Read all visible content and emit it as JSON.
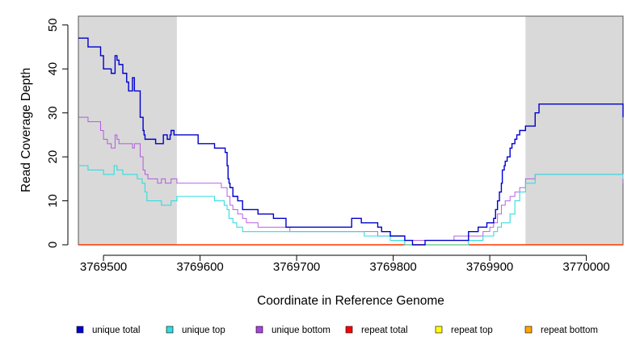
{
  "chart_data": {
    "type": "line",
    "title": "",
    "xlabel": "Coordinate in Reference Genome",
    "ylabel": "Read Coverage Depth",
    "xlim": [
      3769474,
      3770038
    ],
    "ylim": [
      0,
      52
    ],
    "x_ticks": [
      {
        "value": 3769500,
        "label": "3769500"
      },
      {
        "value": 3769600,
        "label": "3769600"
      },
      {
        "value": 3769700,
        "label": "3769700"
      },
      {
        "value": 3769800,
        "label": "3769800"
      },
      {
        "value": 3769900,
        "label": "3769900"
      },
      {
        "value": 3770000,
        "label": "3770000"
      }
    ],
    "y_ticks": [
      {
        "value": 0,
        "label": "0"
      },
      {
        "value": 10,
        "label": "10"
      },
      {
        "value": 20,
        "label": "20"
      },
      {
        "value": 30,
        "label": "30"
      },
      {
        "value": 40,
        "label": "40"
      },
      {
        "value": 50,
        "label": "50"
      }
    ],
    "shaded_regions": [
      {
        "x0": 3769474,
        "x1": 3769576
      },
      {
        "x0": 3769937,
        "x1": 3770038
      }
    ],
    "legend_position": "bottom",
    "series": [
      {
        "name": "unique total",
        "color": "#0000cc",
        "width": 1.4,
        "opacity": 1,
        "step": true,
        "x": [
          3769474,
          3769480,
          3769484,
          3769493,
          3769497,
          3769500,
          3769504,
          3769508,
          3769511,
          3769512,
          3769514,
          3769516,
          3769520,
          3769524,
          3769526,
          3769528,
          3769530,
          3769532,
          3769535,
          3769538,
          3769541,
          3769542,
          3769543,
          3769544,
          3769546,
          3769554,
          3769558,
          3769562,
          3769566,
          3769569,
          3769570,
          3769573,
          3769575,
          3769576,
          3769580,
          3769598,
          3769602,
          3769615,
          3769622,
          3769626,
          3769628,
          3769629,
          3769630,
          3769631,
          3769634,
          3769639,
          3769644,
          3769660,
          3769676,
          3769689,
          3769693,
          3769700,
          3769733,
          3769757,
          3769767,
          3769770,
          3769784,
          3769788,
          3769797,
          3769812,
          3769820,
          3769833,
          3769863,
          3769878,
          3769883,
          3769888,
          3769893,
          3769897,
          3769900,
          3769904,
          3769906,
          3769908,
          3769910,
          3769912,
          3769913,
          3769915,
          3769916,
          3769918,
          3769921,
          3769923,
          3769926,
          3769928,
          3769931,
          3769937,
          3769947,
          3769951,
          3770035,
          3770038
        ],
        "y": [
          47,
          47,
          45,
          45,
          43,
          40,
          40,
          39,
          39,
          43,
          42,
          41,
          39,
          37,
          35,
          35,
          38,
          35,
          35,
          29,
          26,
          25,
          24,
          24,
          24,
          23,
          23,
          25,
          24,
          25,
          26,
          25,
          25,
          25,
          25,
          23,
          23,
          22,
          22,
          21,
          18,
          15,
          14,
          13,
          11,
          10,
          8,
          7,
          6,
          4,
          4,
          4,
          4,
          6,
          5,
          5,
          4,
          3,
          2,
          1,
          0,
          1,
          1,
          3,
          3,
          4,
          4,
          5,
          5,
          6,
          8,
          10,
          12,
          14,
          17,
          18,
          19,
          20,
          22,
          23,
          24,
          25,
          26,
          27,
          30,
          32,
          32,
          30
        ],
        "y_end": 29
      },
      {
        "name": "unique top",
        "color": "#33dddd",
        "width": 1.1,
        "opacity": 1,
        "step": true,
        "x": [
          3769474,
          3769480,
          3769484,
          3769500,
          3769508,
          3769511,
          3769514,
          3769520,
          3769530,
          3769535,
          3769540,
          3769543,
          3769545,
          3769560,
          3769570,
          3769576,
          3769598,
          3769615,
          3769625,
          3769628,
          3769630,
          3769634,
          3769638,
          3769644,
          3769660,
          3769700,
          3769760,
          3769770,
          3769797,
          3769812,
          3769820,
          3769833,
          3769863,
          3769878,
          3769893,
          3769900,
          3769904,
          3769908,
          3769912,
          3769916,
          3769921,
          3769926,
          3769931,
          3769937,
          3769947,
          3770035,
          3770038
        ],
        "y": [
          18,
          18,
          17,
          16,
          16,
          18,
          17,
          16,
          16,
          15,
          14,
          12,
          10,
          9,
          10,
          11,
          11,
          10,
          9,
          8,
          6,
          5,
          4,
          3,
          3,
          3,
          3,
          2,
          1,
          0,
          0,
          0,
          0,
          1,
          2,
          2,
          3,
          4,
          5,
          5,
          7,
          10,
          12,
          14,
          16,
          16,
          15
        ],
        "y_end": 15
      },
      {
        "name": "unique bottom",
        "color": "#aa44dd",
        "width": 1.0,
        "opacity": 0.85,
        "step": true,
        "x": [
          3769474,
          3769480,
          3769484,
          3769493,
          3769497,
          3769500,
          3769504,
          3769508,
          3769511,
          3769512,
          3769514,
          3769516,
          3769520,
          3769526,
          3769530,
          3769532,
          3769538,
          3769541,
          3769543,
          3769546,
          3769556,
          3769560,
          3769564,
          3769570,
          3769576,
          3769598,
          3769622,
          3769628,
          3769631,
          3769634,
          3769639,
          3769644,
          3769648,
          3769660,
          3769693,
          3769700,
          3769757,
          3769767,
          3769784,
          3769797,
          3769812,
          3769820,
          3769833,
          3769863,
          3769878,
          3769893,
          3769900,
          3769904,
          3769908,
          3769912,
          3769916,
          3769921,
          3769926,
          3769931,
          3769937,
          3769947,
          3770035,
          3770038
        ],
        "y": [
          29,
          29,
          28,
          28,
          26,
          24,
          23,
          22,
          22,
          25,
          24,
          23,
          23,
          23,
          22,
          23,
          20,
          17,
          16,
          15,
          14,
          15,
          14,
          15,
          14,
          14,
          13,
          11,
          9,
          8,
          7,
          6,
          5,
          4,
          3,
          3,
          3,
          3,
          2,
          1,
          0,
          1,
          1,
          2,
          2,
          3,
          4,
          5,
          7,
          9,
          10,
          11,
          12,
          13,
          15,
          16,
          16,
          16
        ],
        "y_end": 14
      },
      {
        "name": "repeat total",
        "color": "#ff0000",
        "width": 1.0,
        "opacity": 1,
        "step": false,
        "x": [
          3769474,
          3770038
        ],
        "y": [
          0,
          0
        ]
      },
      {
        "name": "repeat top",
        "color": "#ffff00",
        "width": 1.0,
        "opacity": 1,
        "step": false,
        "x": [
          3769474,
          3770038
        ],
        "y": [
          0,
          0
        ]
      },
      {
        "name": "repeat bottom",
        "color": "#ffa500",
        "width": 1.6,
        "opacity": 1,
        "step": false,
        "x": [
          3769474,
          3770038
        ],
        "y": [
          0,
          0
        ]
      }
    ]
  }
}
